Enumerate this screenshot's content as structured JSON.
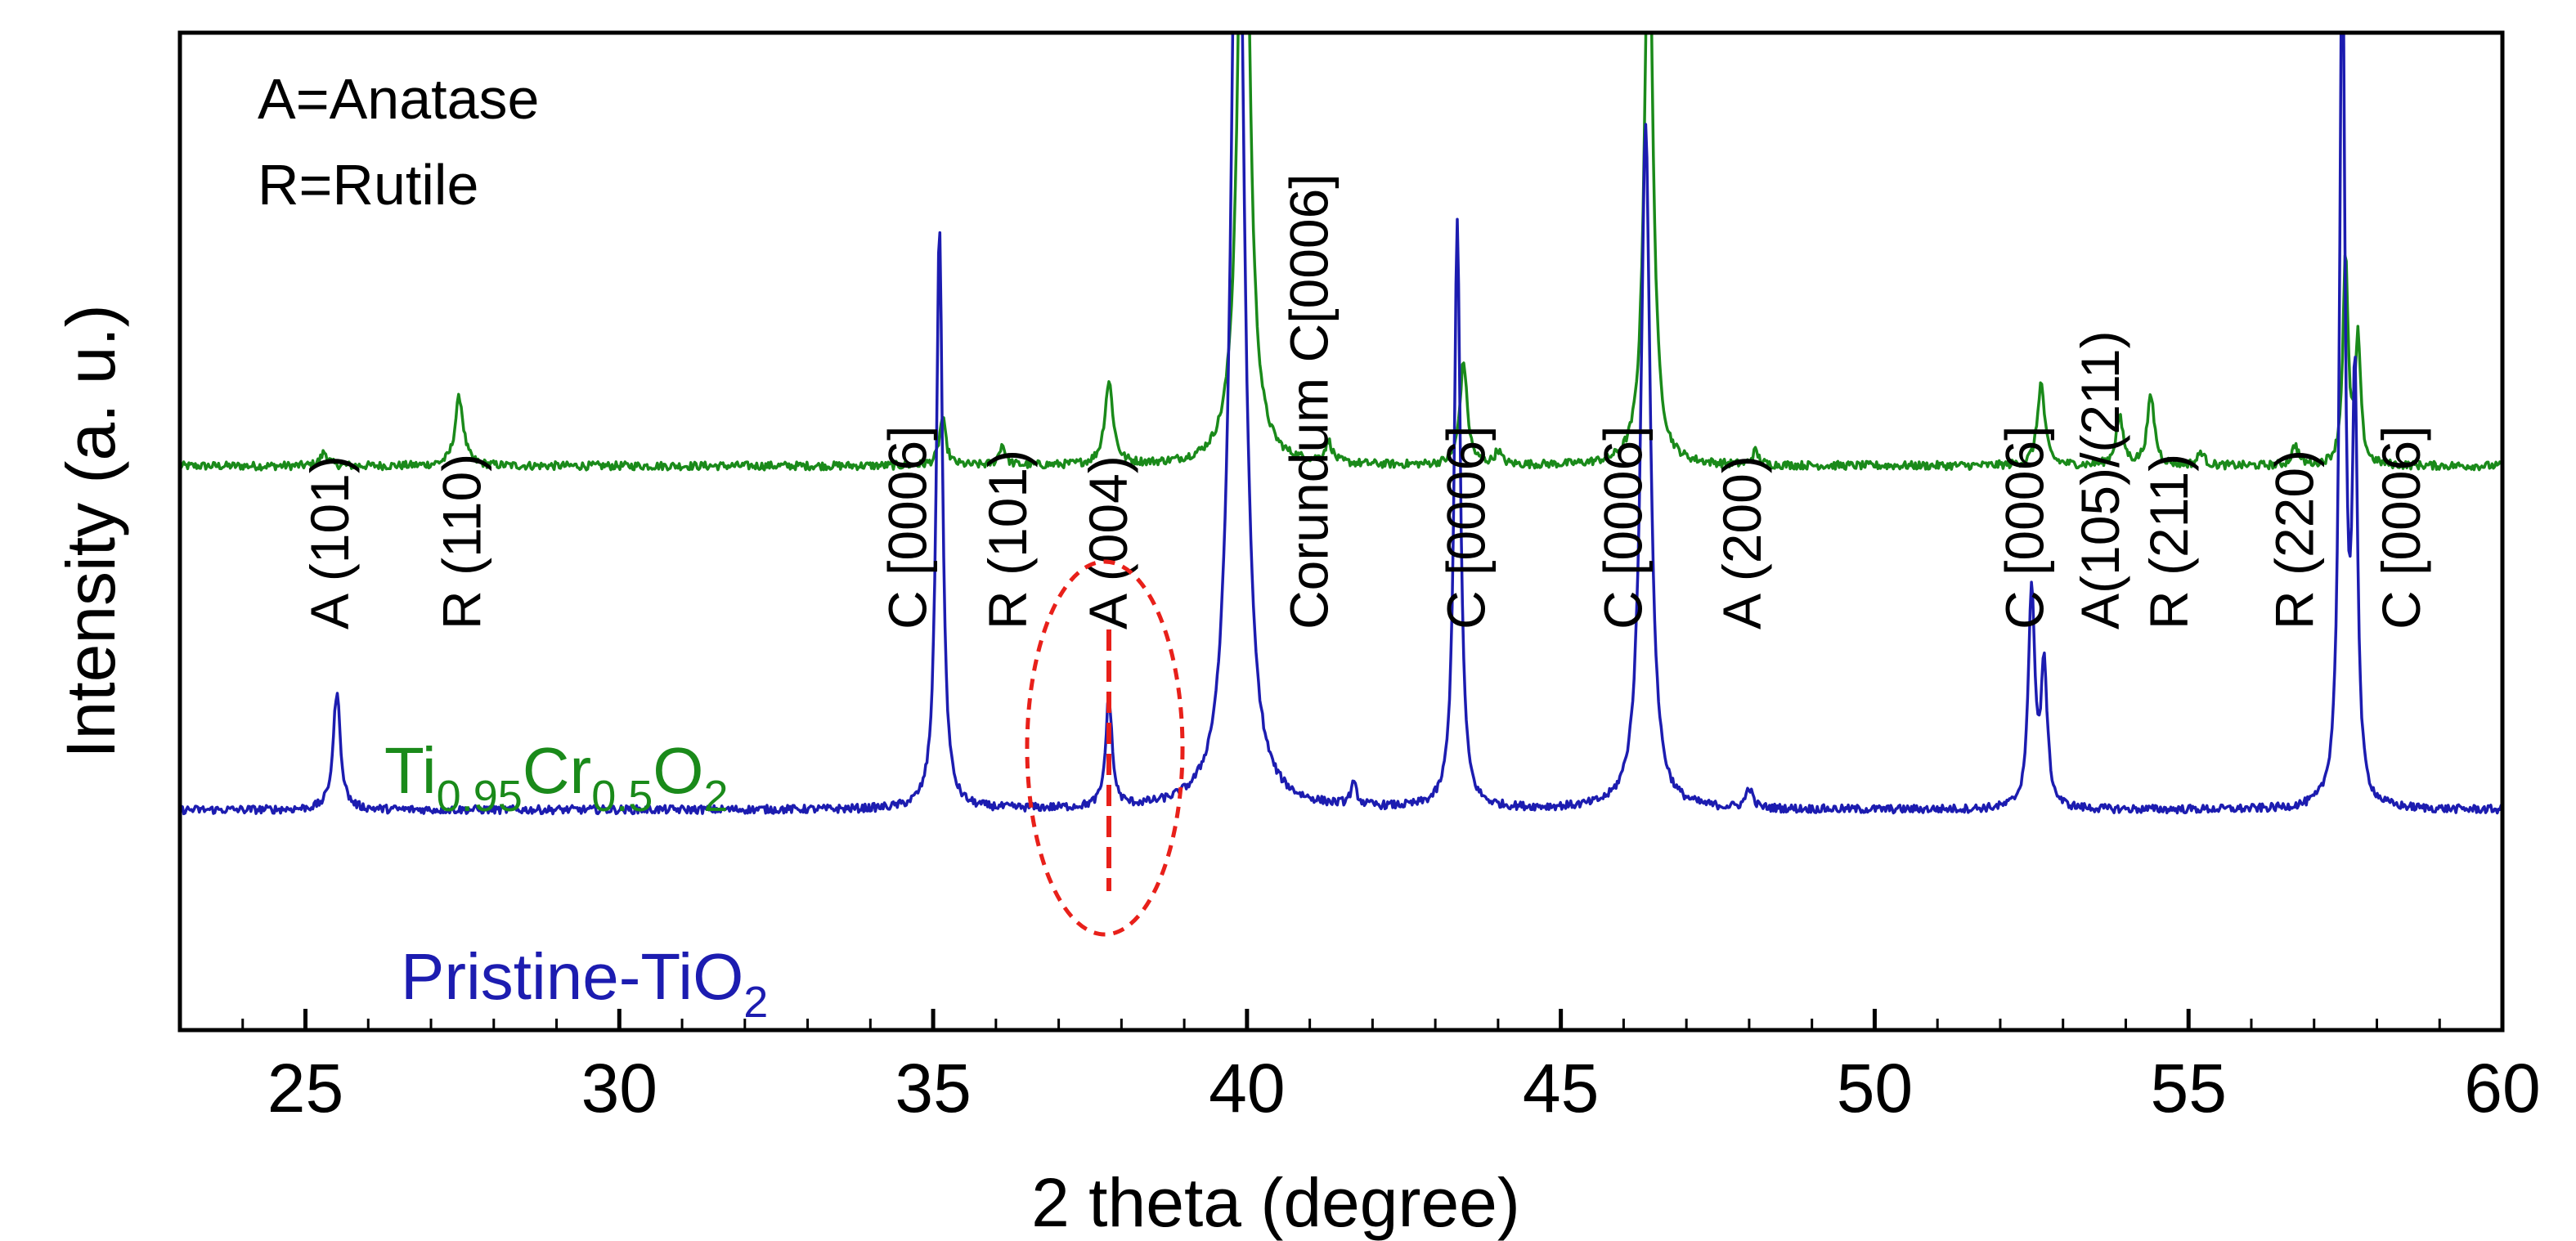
{
  "chart_data": {
    "type": "line",
    "xlabel": "2 theta (degree)",
    "ylabel": "Intensity (a. u.)",
    "xlim": [
      23,
      60
    ],
    "ylim": [
      0,
      1.45
    ],
    "xticks": [
      "25",
      "30",
      "35",
      "40",
      "45",
      "50",
      "55",
      "60"
    ],
    "yticks": [],
    "legend_note": {
      "line1": "A=Anatase",
      "line2": "R=Rutile"
    },
    "series": [
      {
        "name": "Ti0.95Cr0.5O2",
        "label_parts": {
          "a": "Ti",
          "b": "0.95",
          "c": "Cr",
          "d": "0.5",
          "e": "O",
          "f": "2"
        },
        "color": "#1a8a1a",
        "baseline": 0.82,
        "noise": 0.006,
        "peaks": [
          {
            "x": 25.3,
            "h": 0.02,
            "w": 0.07
          },
          {
            "x": 27.45,
            "h": 0.1,
            "w": 0.08
          },
          {
            "x": 35.15,
            "h": 0.07,
            "w": 0.06
          },
          {
            "x": 36.1,
            "h": 0.03,
            "w": 0.06
          },
          {
            "x": 37.8,
            "h": 0.12,
            "w": 0.08
          },
          {
            "x": 39.95,
            "h": 1.15,
            "w": 0.1
          },
          {
            "x": 41.3,
            "h": 0.03,
            "w": 0.07
          },
          {
            "x": 43.45,
            "h": 0.15,
            "w": 0.07
          },
          {
            "x": 44.0,
            "h": 0.02,
            "w": 0.06
          },
          {
            "x": 46.4,
            "h": 0.85,
            "w": 0.08
          },
          {
            "x": 48.1,
            "h": 0.02,
            "w": 0.06
          },
          {
            "x": 52.65,
            "h": 0.12,
            "w": 0.07
          },
          {
            "x": 53.9,
            "h": 0.07,
            "w": 0.07
          },
          {
            "x": 54.4,
            "h": 0.1,
            "w": 0.07
          },
          {
            "x": 55.2,
            "h": 0.02,
            "w": 0.06
          },
          {
            "x": 56.7,
            "h": 0.03,
            "w": 0.06
          },
          {
            "x": 57.5,
            "h": 0.3,
            "w": 0.05
          },
          {
            "x": 57.7,
            "h": 0.18,
            "w": 0.05
          }
        ]
      },
      {
        "name": "Pristine-TiO2",
        "label_parts": {
          "a": "Pristine-TiO",
          "b": "2"
        },
        "color": "#1c1cb0",
        "baseline": 0.32,
        "noise": 0.006,
        "peaks": [
          {
            "x": 25.5,
            "h": 0.17,
            "w": 0.07
          },
          {
            "x": 35.1,
            "h": 0.85,
            "w": 0.06
          },
          {
            "x": 37.8,
            "h": 0.16,
            "w": 0.06
          },
          {
            "x": 39.85,
            "h": 1.6,
            "w": 0.12
          },
          {
            "x": 41.7,
            "h": 0.03,
            "w": 0.06
          },
          {
            "x": 43.35,
            "h": 0.85,
            "w": 0.06
          },
          {
            "x": 46.35,
            "h": 1.0,
            "w": 0.09
          },
          {
            "x": 48.0,
            "h": 0.03,
            "w": 0.06
          },
          {
            "x": 52.5,
            "h": 0.32,
            "w": 0.06
          },
          {
            "x": 52.7,
            "h": 0.2,
            "w": 0.06
          },
          {
            "x": 57.45,
            "h": 1.3,
            "w": 0.05
          },
          {
            "x": 57.65,
            "h": 0.6,
            "w": 0.05
          }
        ]
      }
    ],
    "annotations": [
      {
        "text": "A (101)",
        "x": 25.4
      },
      {
        "text": "R (110)",
        "x": 27.5
      },
      {
        "text": "C [0006]",
        "x": 34.6
      },
      {
        "text": "R (101)",
        "x": 36.2
      },
      {
        "text": "A (004)",
        "x": 37.8
      },
      {
        "text": "Corundum C[0006]",
        "x": 41.0
      },
      {
        "text": "C [0006]",
        "x": 43.5
      },
      {
        "text": "C [0006]",
        "x": 46.0
      },
      {
        "text": "A (200)",
        "x": 47.9
      },
      {
        "text": "C [0006]",
        "x": 52.4
      },
      {
        "text": "A(105)/(211)",
        "x": 53.6
      },
      {
        "text": "R (211)",
        "x": 54.7
      },
      {
        "text": "R (220)",
        "x": 56.7
      },
      {
        "text": "C [0006]",
        "x": 58.4
      }
    ],
    "highlight": {
      "shape": "dashed-ellipse",
      "x": 37.8,
      "color": "#e8201a"
    }
  }
}
